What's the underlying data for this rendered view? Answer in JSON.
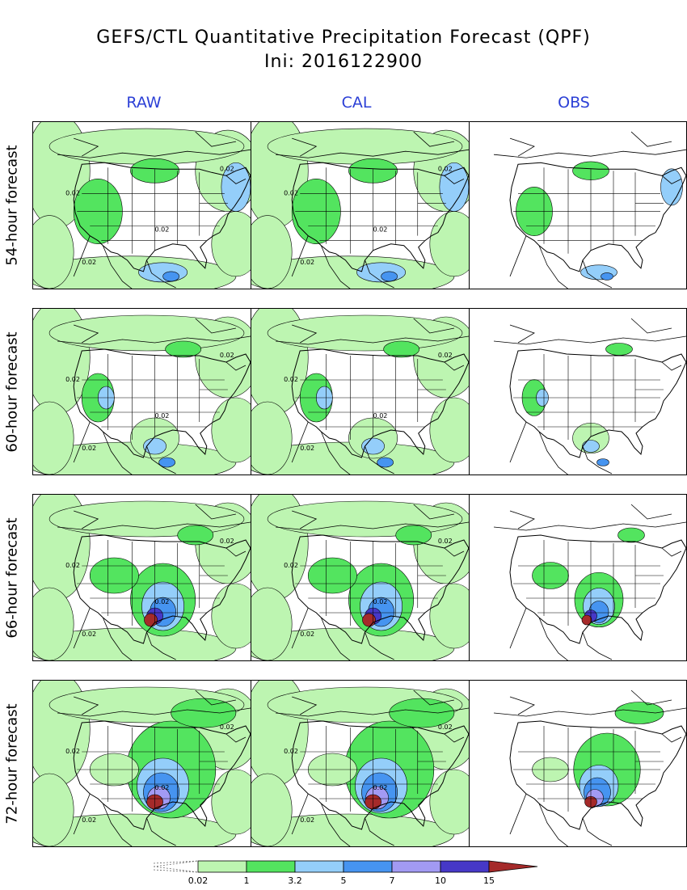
{
  "title": {
    "line1": "GEFS/CTL Quantitative Precipitation Forecast (QPF)",
    "line2": "Ini: 2016122900"
  },
  "columns": [
    "RAW",
    "CAL",
    "OBS"
  ],
  "rows": [
    "54-hour forecast",
    "60-hour forecast",
    "66-hour forecast",
    "72-hour forecast"
  ],
  "contour_label": "0.02",
  "legend": {
    "thresholds": [
      "0.02",
      "1",
      "3.2",
      "5",
      "7",
      "10",
      "15"
    ],
    "colors": [
      "#bdf5b1",
      "#53e45f",
      "#94cefa",
      "#4694f0",
      "#a29af3",
      "#4638c7",
      "#a52a2a"
    ]
  },
  "map_style": {
    "land": "#ffffff",
    "light": "#bdf5b1",
    "green": "#53e45f",
    "lightblue": "#94cefa",
    "blue": "#4694f0",
    "lavender": "#a29af3",
    "indigo": "#4638c7",
    "red": "#a52a2a"
  }
}
